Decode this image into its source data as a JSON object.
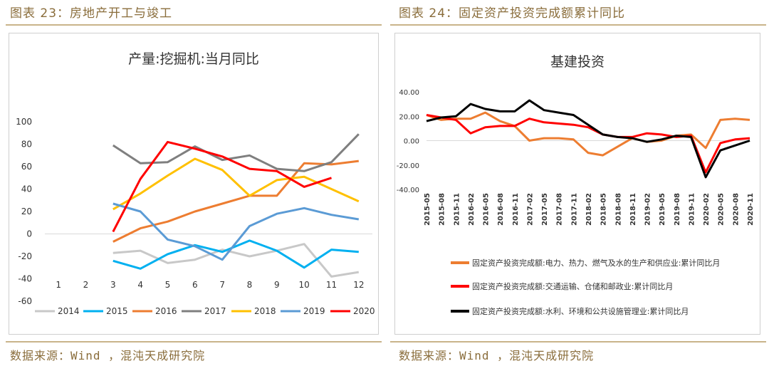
{
  "left": {
    "fig_label": "图表 23：房地产开工与竣工",
    "source": "数据来源：Wind ，混沌天成研究院"
  },
  "right": {
    "fig_label": "图表 24：固定资产投资完成额累计同比",
    "source": "数据来源：Wind ，混沌天成研究院"
  },
  "chart_data": [
    {
      "type": "line",
      "title": "产量:挖掘机:当月同比",
      "xlabel": "",
      "ylabel": "",
      "categories": [
        "1",
        "2",
        "3",
        "4",
        "5",
        "6",
        "7",
        "8",
        "9",
        "10",
        "11",
        "12"
      ],
      "ylim": [
        -60,
        100
      ],
      "yticks": [
        100,
        80,
        60,
        40,
        20,
        0,
        -20,
        -40,
        -60
      ],
      "legend_position": "bottom",
      "series": [
        {
          "name": "2014",
          "color": "#c8c8c8",
          "values": [
            null,
            null,
            -17,
            -15,
            -26,
            -23,
            -14,
            -20,
            -15,
            -9,
            -38,
            -34
          ]
        },
        {
          "name": "2015",
          "color": "#00b0f0",
          "values": [
            null,
            null,
            -24,
            -31,
            -18,
            -10,
            -16,
            -6,
            -15,
            -30,
            -14,
            -16
          ]
        },
        {
          "name": "2016",
          "color": "#ed7d31",
          "values": [
            null,
            null,
            -7,
            5,
            11,
            20,
            27,
            34,
            34,
            63,
            62,
            65
          ]
        },
        {
          "name": "2017",
          "color": "#7f7f7f",
          "values": [
            null,
            null,
            79,
            63,
            64,
            78,
            66,
            70,
            58,
            56,
            64,
            89
          ]
        },
        {
          "name": "2018",
          "color": "#ffc000",
          "values": [
            null,
            null,
            22,
            36,
            52,
            67,
            57,
            34,
            48,
            51,
            40,
            29
          ]
        },
        {
          "name": "2019",
          "color": "#5b9bd5",
          "values": [
            null,
            null,
            27,
            20,
            -5,
            -11,
            -23,
            7,
            18,
            23,
            17,
            13
          ]
        },
        {
          "name": "2020",
          "color": "#ff0000",
          "values": [
            null,
            null,
            2,
            49,
            82,
            76,
            69,
            58,
            56,
            42,
            50,
            null
          ]
        }
      ]
    },
    {
      "type": "line",
      "title": "基建投资",
      "xlabel": "",
      "ylabel": "",
      "categories": [
        "2015-05",
        "2015-08",
        "2015-11",
        "2016-02",
        "2016-05",
        "2016-08",
        "2016-11",
        "2017-02",
        "2017-05",
        "2017-08",
        "2017-11",
        "2018-02",
        "2018-05",
        "2018-08",
        "2018-11",
        "2019-02",
        "2019-05",
        "2019-08",
        "2019-11",
        "2020-02",
        "2020-05",
        "2020-08",
        "2020-11"
      ],
      "ylim": [
        -40,
        40
      ],
      "yticks": [
        "40.00",
        "20.00",
        "0.00",
        "-20.00",
        "-40.00"
      ],
      "legend_position": "bottom",
      "series": [
        {
          "name": "固定资产投资完成额:电力、热力、燃气及水的生产和供应业:累计同比月",
          "color": "#ed7d31",
          "values": [
            21,
            17,
            18,
            18,
            23,
            16,
            12,
            0,
            2,
            2,
            1,
            -10,
            -12,
            -5,
            2,
            -1,
            0,
            4,
            5,
            -6,
            17,
            18,
            17
          ]
        },
        {
          "name": "固定资产投资完成额:交通运输、仓储和邮政业:累计同比月",
          "color": "#ff0000",
          "values": [
            21,
            19,
            17,
            6,
            11,
            12,
            12,
            18,
            15,
            14,
            13,
            11,
            5,
            3,
            3,
            6,
            5,
            3,
            4,
            -26,
            -2,
            1,
            2
          ]
        },
        {
          "name": "固定资产投资完成额:水利、环境和公共设施管理业:累计同比月",
          "color": "#000000",
          "values": [
            16,
            19,
            20,
            30,
            26,
            24,
            24,
            33,
            25,
            23,
            21,
            13,
            5,
            3,
            2,
            -1,
            1,
            4,
            3,
            -30,
            -8,
            -4,
            0
          ]
        }
      ]
    }
  ]
}
